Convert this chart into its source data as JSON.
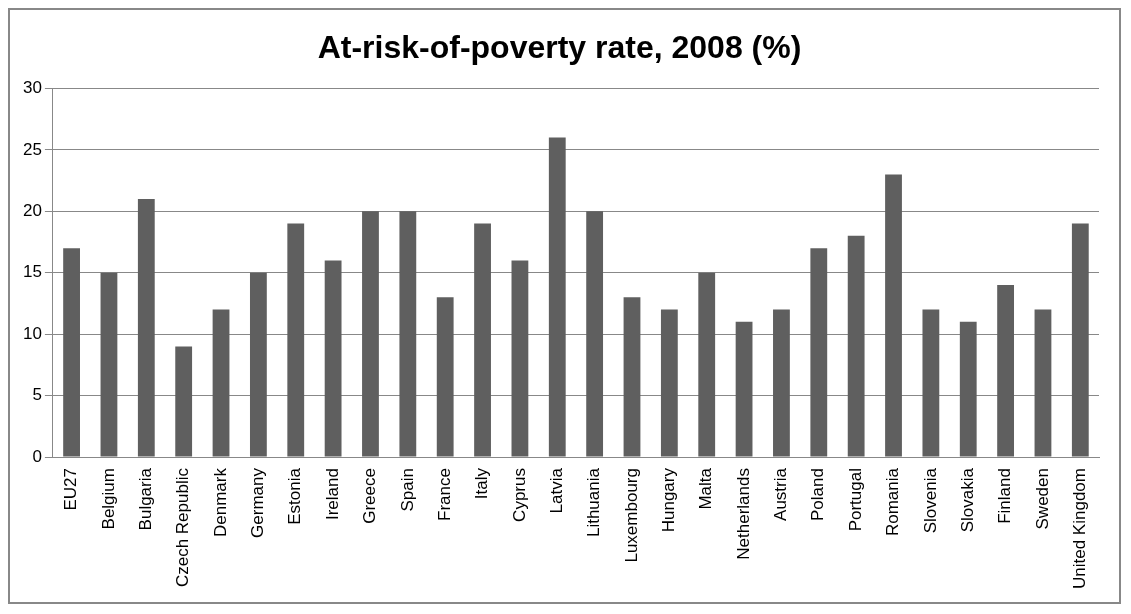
{
  "chart_data": {
    "type": "bar",
    "title": "At-risk-of-poverty rate, 2008 (%)",
    "categories": [
      "EU27",
      "Belgium",
      "Bulgaria",
      "Czech Republic",
      "Denmark",
      "Germany",
      "Estonia",
      "Ireland",
      "Greece",
      "Spain",
      "France",
      "Italy",
      "Cyprus",
      "Latvia",
      "Lithuania",
      "Luxembourg",
      "Hungary",
      "Malta",
      "Netherlands",
      "Austria",
      "Poland",
      "Portugal",
      "Romania",
      "Slovenia",
      "Slovakia",
      "Finland",
      "Sweden",
      "United Kingdom"
    ],
    "values": [
      17,
      15,
      21,
      9,
      12,
      15,
      19,
      16,
      20,
      20,
      13,
      19,
      16,
      26,
      20,
      13,
      12,
      15,
      11,
      12,
      17,
      18,
      23,
      12,
      11,
      14,
      12,
      19
    ],
    "color": "#5f5f5f",
    "ylim": [
      0,
      30
    ],
    "yticks": [
      0,
      5,
      10,
      15,
      20,
      25,
      30
    ],
    "grid": "y"
  }
}
